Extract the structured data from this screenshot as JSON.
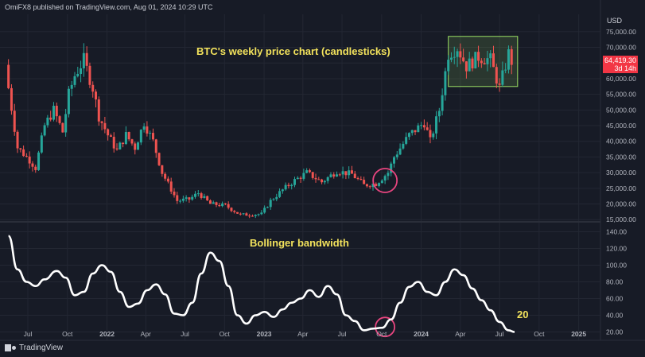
{
  "header": {
    "publisher_line": "OmiFX8 published on TradingView.com, Aug 01, 2024 10:29 UTC"
  },
  "currency": "USD",
  "annotations": {
    "price_title": "BTC's weekly price chart (candlesticks)",
    "indicator_title": "Bollinger bandwidth",
    "bandwidth_value": "20"
  },
  "price_tag": {
    "price": "64,419.30",
    "countdown": "3d 14h"
  },
  "footer": {
    "brand": "TradingView"
  },
  "colors": {
    "up": "#26a69a",
    "down": "#ef5350",
    "highlight_box": "#9be063",
    "circle": "#e8457f",
    "annotation_text": "#f2e25c",
    "bandwidth_line": "#ffffff"
  },
  "chart_data": [
    {
      "type": "candlestick",
      "timeframe": "weekly",
      "y_axis_ticks": [
        15000,
        20000,
        25000,
        30000,
        35000,
        40000,
        45000,
        50000,
        55000,
        60000,
        65000,
        70000,
        75000
      ],
      "y_axis_labels": [
        "15,000.00",
        "20,000.00",
        "25,000.00",
        "30,000.00",
        "35,000.00",
        "40,000.00",
        "45,000.00",
        "50,000.00",
        "55,000.00",
        "60,000.00",
        "65,000.00",
        "70,000.00",
        "75,000.00"
      ],
      "ylim": [
        11500,
        77500
      ],
      "x_axis_labels": [
        "Jul",
        "Oct",
        "2022",
        "Apr",
        "Jul",
        "Oct",
        "2023",
        "Apr",
        "Jul",
        "Oct",
        "2024",
        "Apr",
        "Jul",
        "Oct",
        "2025"
      ],
      "x_axis_dates": [
        "2021-07-01",
        "2021-10-01",
        "2022-01-01",
        "2022-04-01",
        "2022-07-01",
        "2022-10-01",
        "2023-01-01",
        "2023-04-01",
        "2023-07-01",
        "2023-10-01",
        "2024-01-01",
        "2024-04-01",
        "2024-07-01",
        "2024-10-01",
        "2025-01-01"
      ],
      "last_price": 64419.3,
      "closes": [
        {
          "date": "2021-05-17",
          "close": 57000
        },
        {
          "date": "2021-06-07",
          "close": 38000
        },
        {
          "date": "2021-07-05",
          "close": 34000
        },
        {
          "date": "2021-07-19",
          "close": 31500
        },
        {
          "date": "2021-08-09",
          "close": 45000
        },
        {
          "date": "2021-08-30",
          "close": 50000
        },
        {
          "date": "2021-09-20",
          "close": 43000
        },
        {
          "date": "2021-10-04",
          "close": 55000
        },
        {
          "date": "2021-10-18",
          "close": 61000
        },
        {
          "date": "2021-11-08",
          "close": 66000
        },
        {
          "date": "2021-11-29",
          "close": 57000
        },
        {
          "date": "2021-12-13",
          "close": 48000
        },
        {
          "date": "2022-01-03",
          "close": 42000
        },
        {
          "date": "2022-01-24",
          "close": 37000
        },
        {
          "date": "2022-02-14",
          "close": 42000
        },
        {
          "date": "2022-03-07",
          "close": 38000
        },
        {
          "date": "2022-03-28",
          "close": 46000
        },
        {
          "date": "2022-04-18",
          "close": 40000
        },
        {
          "date": "2022-05-09",
          "close": 30000
        },
        {
          "date": "2022-06-13",
          "close": 21000
        },
        {
          "date": "2022-07-11",
          "close": 21500
        },
        {
          "date": "2022-08-01",
          "close": 23500
        },
        {
          "date": "2022-08-29",
          "close": 20000
        },
        {
          "date": "2022-10-03",
          "close": 19500
        },
        {
          "date": "2022-11-07",
          "close": 16500
        },
        {
          "date": "2022-12-26",
          "close": 16800
        },
        {
          "date": "2023-01-16",
          "close": 21000
        },
        {
          "date": "2023-02-13",
          "close": 24500
        },
        {
          "date": "2023-03-13",
          "close": 27500
        },
        {
          "date": "2023-04-10",
          "close": 30000
        },
        {
          "date": "2023-05-15",
          "close": 27000
        },
        {
          "date": "2023-06-19",
          "close": 30500
        },
        {
          "date": "2023-07-24",
          "close": 29500
        },
        {
          "date": "2023-08-21",
          "close": 26000
        },
        {
          "date": "2023-09-18",
          "close": 26500
        },
        {
          "date": "2023-10-16",
          "close": 30000
        },
        {
          "date": "2023-10-30",
          "close": 35000
        },
        {
          "date": "2023-12-04",
          "close": 42000
        },
        {
          "date": "2024-01-08",
          "close": 46000
        },
        {
          "date": "2024-01-22",
          "close": 40000
        },
        {
          "date": "2024-02-12",
          "close": 50000
        },
        {
          "date": "2024-03-04",
          "close": 68000
        },
        {
          "date": "2024-03-25",
          "close": 70000
        },
        {
          "date": "2024-04-15",
          "close": 64000
        },
        {
          "date": "2024-05-13",
          "close": 67000
        },
        {
          "date": "2024-06-10",
          "close": 66000
        },
        {
          "date": "2024-07-01",
          "close": 57000
        },
        {
          "date": "2024-07-22",
          "close": 68000
        },
        {
          "date": "2024-07-29",
          "close": 64419
        }
      ],
      "highlight_range": {
        "from": "2024-03-04",
        "to": "2024-08-12",
        "low": 57500,
        "high": 73500
      },
      "circle_at": {
        "date": "2023-10-09",
        "price": 27500
      }
    },
    {
      "type": "line",
      "title": "Bollinger bandwidth",
      "y_axis_ticks": [
        20,
        40,
        60,
        80,
        100,
        120,
        140
      ],
      "y_axis_labels": [
        "20.00",
        "40.00",
        "60.00",
        "80.00",
        "100.00",
        "120.00",
        "140.00"
      ],
      "ylim": [
        10,
        150
      ],
      "series": [
        {
          "points": [
            [
              "2021-05-17",
              135
            ],
            [
              "2021-06-07",
              95
            ],
            [
              "2021-06-28",
              80
            ],
            [
              "2021-07-19",
              75
            ],
            [
              "2021-08-09",
              83
            ],
            [
              "2021-09-06",
              93
            ],
            [
              "2021-09-27",
              85
            ],
            [
              "2021-10-18",
              64
            ],
            [
              "2021-11-08",
              68
            ],
            [
              "2021-11-29",
              90
            ],
            [
              "2021-12-20",
              100
            ],
            [
              "2022-01-10",
              92
            ],
            [
              "2022-01-31",
              68
            ],
            [
              "2022-02-21",
              50
            ],
            [
              "2022-03-14",
              54
            ],
            [
              "2022-04-04",
              70
            ],
            [
              "2022-04-25",
              77
            ],
            [
              "2022-05-16",
              65
            ],
            [
              "2022-06-06",
              42
            ],
            [
              "2022-06-27",
              40
            ],
            [
              "2022-07-18",
              55
            ],
            [
              "2022-08-08",
              90
            ],
            [
              "2022-08-29",
              115
            ],
            [
              "2022-09-19",
              105
            ],
            [
              "2022-10-10",
              75
            ],
            [
              "2022-10-31",
              40
            ],
            [
              "2022-11-21",
              30
            ],
            [
              "2022-12-12",
              40
            ],
            [
              "2023-01-02",
              44
            ],
            [
              "2023-01-23",
              38
            ],
            [
              "2023-02-13",
              47
            ],
            [
              "2023-03-06",
              55
            ],
            [
              "2023-03-27",
              60
            ],
            [
              "2023-04-17",
              70
            ],
            [
              "2023-05-08",
              62
            ],
            [
              "2023-05-29",
              75
            ],
            [
              "2023-06-19",
              65
            ],
            [
              "2023-07-10",
              40
            ],
            [
              "2023-07-31",
              33
            ],
            [
              "2023-08-21",
              22
            ],
            [
              "2023-09-11",
              24
            ],
            [
              "2023-10-02",
              25
            ],
            [
              "2023-10-23",
              35
            ],
            [
              "2023-11-13",
              55
            ],
            [
              "2023-12-04",
              74
            ],
            [
              "2023-12-25",
              80
            ],
            [
              "2024-01-15",
              68
            ],
            [
              "2024-02-05",
              64
            ],
            [
              "2024-02-26",
              80
            ],
            [
              "2024-03-18",
              95
            ],
            [
              "2024-04-08",
              88
            ],
            [
              "2024-04-29",
              72
            ],
            [
              "2024-05-20",
              58
            ],
            [
              "2024-06-10",
              46
            ],
            [
              "2024-07-01",
              32
            ],
            [
              "2024-07-22",
              22
            ],
            [
              "2024-08-05",
              20
            ]
          ]
        }
      ],
      "circle_at": {
        "date": "2023-10-09",
        "value": 26
      }
    }
  ]
}
